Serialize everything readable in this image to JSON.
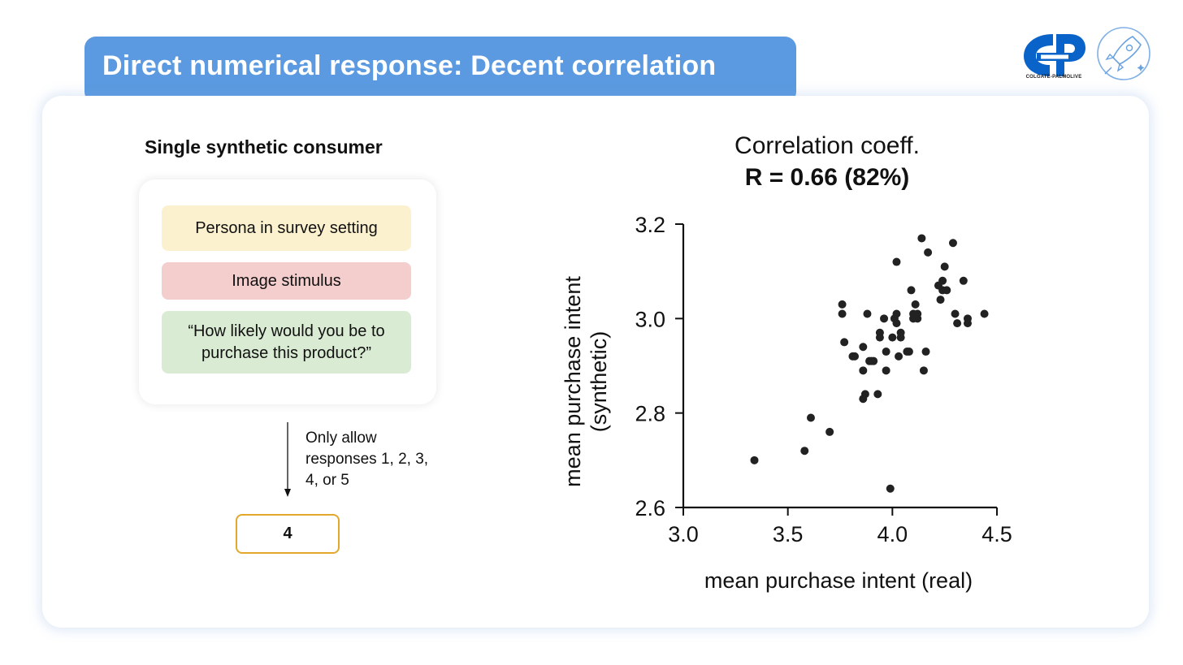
{
  "slide": {
    "title": "Direct numerical response: Decent correlation",
    "accent_color": "#5b9ae0"
  },
  "logos": {
    "brand_text": "COLGATE-PALMOLIVE",
    "brand_color": "#0a63c9"
  },
  "left_panel": {
    "heading": "Single synthetic consumer",
    "pills": [
      {
        "text": "Persona in survey setting",
        "color": "#fcf1cf"
      },
      {
        "text": "Image stimulus",
        "color": "#f4cdcd"
      },
      {
        "text": "“How likely would you be to purchase this product?”",
        "color": "#daebd3"
      }
    ],
    "arrow_note": "Only allow responses 1, 2, 3, 4, or 5",
    "answer": "4",
    "answer_border_color": "#e3a82b"
  },
  "right_panel": {
    "corr_label": "Correlation coeff.",
    "corr_value": "R = 0.66 (82%)"
  },
  "chart_data": {
    "type": "scatter",
    "title": "",
    "xlabel": "mean purchase intent (real)",
    "ylabel_line1": "mean purchase intent",
    "ylabel_line2": "(synthetic)",
    "xlim": [
      3.0,
      4.5
    ],
    "ylim": [
      2.6,
      3.2
    ],
    "xticks": [
      3.0,
      3.5,
      4.0,
      4.5
    ],
    "xtick_labels": [
      "3.0",
      "3.5",
      "4.0",
      "4.5"
    ],
    "yticks": [
      2.6,
      2.8,
      3.0,
      3.2
    ],
    "ytick_labels": [
      "2.6",
      "2.8",
      "3.0",
      "3.2"
    ],
    "grid": false,
    "point_color": "#222222",
    "points": [
      [
        3.34,
        2.7
      ],
      [
        3.58,
        2.72
      ],
      [
        3.61,
        2.79
      ],
      [
        3.7,
        2.76
      ],
      [
        3.76,
        3.03
      ],
      [
        3.76,
        3.01
      ],
      [
        3.77,
        2.95
      ],
      [
        3.81,
        2.92
      ],
      [
        3.82,
        2.92
      ],
      [
        3.86,
        2.94
      ],
      [
        3.86,
        2.89
      ],
      [
        3.86,
        2.83
      ],
      [
        3.87,
        2.84
      ],
      [
        3.88,
        3.01
      ],
      [
        3.89,
        2.91
      ],
      [
        3.9,
        2.91
      ],
      [
        3.91,
        2.91
      ],
      [
        3.93,
        2.84
      ],
      [
        3.94,
        2.97
      ],
      [
        3.94,
        2.96
      ],
      [
        3.96,
        3.0
      ],
      [
        3.97,
        2.93
      ],
      [
        3.97,
        2.89
      ],
      [
        3.99,
        2.64
      ],
      [
        4.0,
        2.96
      ],
      [
        4.01,
        3.0
      ],
      [
        4.02,
        3.12
      ],
      [
        4.02,
        3.01
      ],
      [
        4.02,
        2.99
      ],
      [
        4.03,
        2.92
      ],
      [
        4.04,
        2.96
      ],
      [
        4.04,
        2.97
      ],
      [
        4.07,
        2.93
      ],
      [
        4.08,
        2.93
      ],
      [
        4.09,
        3.06
      ],
      [
        4.1,
        3.01
      ],
      [
        4.1,
        3.0
      ],
      [
        4.11,
        3.03
      ],
      [
        4.12,
        3.0
      ],
      [
        4.12,
        3.01
      ],
      [
        4.14,
        3.17
      ],
      [
        4.15,
        2.89
      ],
      [
        4.16,
        2.93
      ],
      [
        4.17,
        3.14
      ],
      [
        4.22,
        3.07
      ],
      [
        4.23,
        3.04
      ],
      [
        4.24,
        3.08
      ],
      [
        4.24,
        3.06
      ],
      [
        4.25,
        3.11
      ],
      [
        4.26,
        3.06
      ],
      [
        4.29,
        3.16
      ],
      [
        4.3,
        3.01
      ],
      [
        4.31,
        2.99
      ],
      [
        4.34,
        3.08
      ],
      [
        4.36,
        2.99
      ],
      [
        4.36,
        3.0
      ],
      [
        4.44,
        3.01
      ]
    ]
  }
}
